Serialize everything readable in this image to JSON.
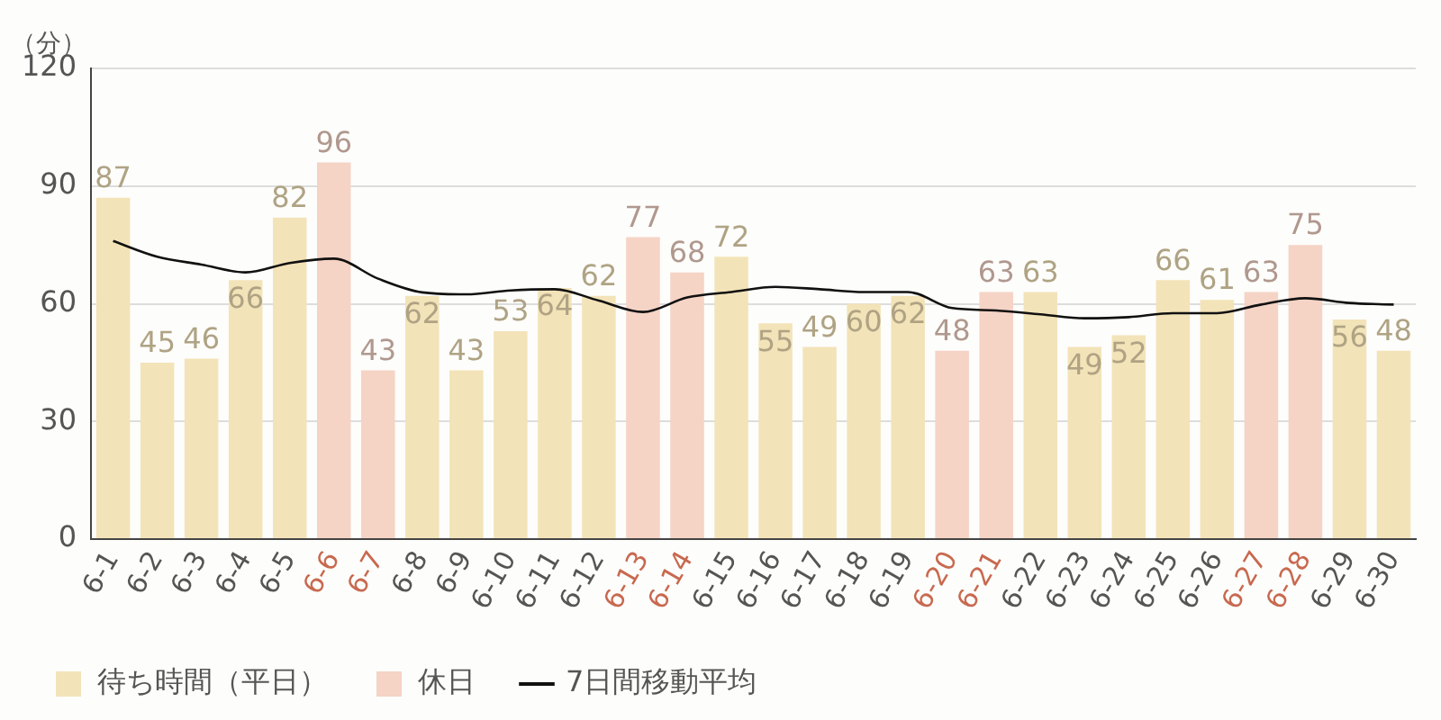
{
  "chart_data": {
    "type": "bar",
    "ylabel": "（分）",
    "categories": [
      "6-1",
      "6-2",
      "6-3",
      "6-4",
      "6-5",
      "6-6",
      "6-7",
      "6-8",
      "6-9",
      "6-10",
      "6-11",
      "6-12",
      "6-13",
      "6-14",
      "6-15",
      "6-16",
      "6-17",
      "6-18",
      "6-19",
      "6-20",
      "6-21",
      "6-22",
      "6-23",
      "6-24",
      "6-25",
      "6-26",
      "6-27",
      "6-28",
      "6-29",
      "6-30"
    ],
    "series": [
      {
        "name": "待ち時間（平日）",
        "color": "#f3e3b8",
        "values": [
          87,
          45,
          46,
          66,
          82,
          null,
          null,
          62,
          43,
          53,
          64,
          62,
          null,
          null,
          72,
          55,
          49,
          60,
          62,
          null,
          null,
          63,
          49,
          52,
          66,
          61,
          null,
          null,
          56,
          48
        ],
        "value_labels": [
          "87",
          "45",
          "46",
          "66",
          "82",
          null,
          null,
          "62",
          "43",
          "53",
          "64",
          "62",
          null,
          null,
          "72",
          "55",
          "49",
          "60",
          "62",
          null,
          null,
          "63",
          "49",
          "52",
          "66",
          "61",
          null,
          null,
          "56",
          "48"
        ]
      },
      {
        "name": "休日",
        "color": "#f5d3c5",
        "values": [
          null,
          null,
          null,
          null,
          null,
          96,
          43,
          null,
          null,
          null,
          null,
          null,
          77,
          68,
          null,
          null,
          null,
          null,
          null,
          48,
          63,
          null,
          null,
          null,
          null,
          null,
          63,
          75,
          null,
          null
        ],
        "value_labels": [
          null,
          null,
          null,
          null,
          null,
          "96",
          "43",
          null,
          null,
          null,
          null,
          null,
          "77",
          "68",
          null,
          null,
          null,
          null,
          null,
          "48",
          "63",
          null,
          null,
          null,
          null,
          null,
          "63",
          "75",
          null,
          null
        ]
      },
      {
        "name": "7日間移動平均",
        "type": "line",
        "color": "#111111",
        "marker": "none",
        "line_style": "solid",
        "values": [
          76,
          72,
          70,
          68,
          70.4,
          71.5,
          66.4,
          62.9,
          62.4,
          63.4,
          63.7,
          60.8,
          57.9,
          61.6,
          63,
          64.3,
          63.7,
          63,
          63,
          58.9,
          58.3,
          57.3,
          56.3,
          56.6,
          57.6,
          57.6,
          59.8,
          61.4,
          60.2,
          59.8
        ]
      }
    ],
    "ylim": [
      0,
      120
    ],
    "yticks": [
      0,
      30,
      60,
      90,
      120
    ],
    "grid": "y",
    "legend": "bottom"
  }
}
